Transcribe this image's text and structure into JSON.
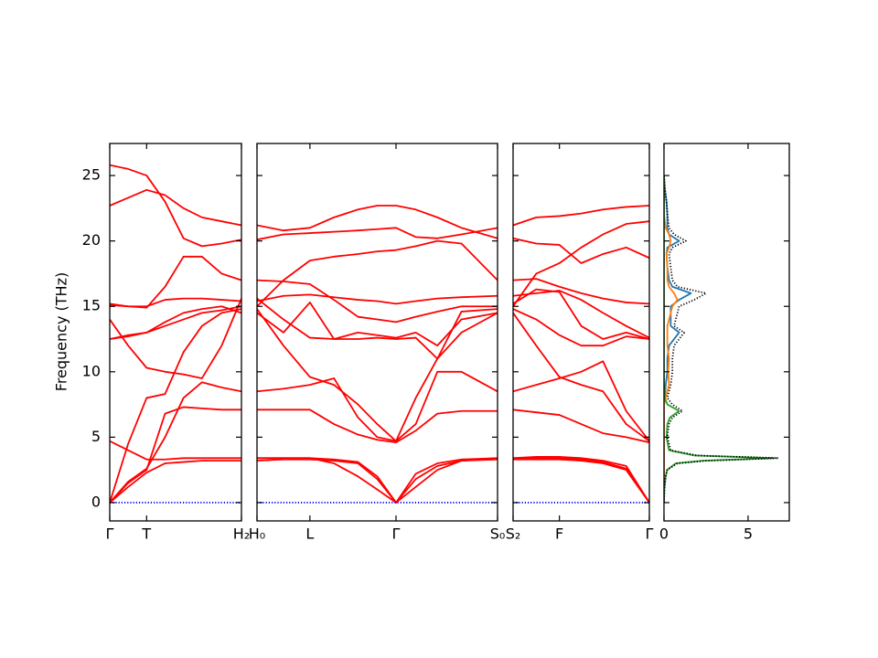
{
  "chart_data": [
    {
      "type": "line",
      "ylabel": "Frequency (THz)",
      "ylim": [
        -1.4,
        27.45
      ],
      "yticks": [
        0,
        5,
        10,
        15,
        20,
        25
      ],
      "xlim": [
        0,
        1
      ],
      "xticks": [
        {
          "value": 0,
          "label": "Γ"
        },
        {
          "value": 0.28,
          "label": "T"
        },
        {
          "value": 1,
          "label": "H₂"
        }
      ],
      "x": [
        0,
        0.14,
        0.28,
        0.42,
        0.56,
        0.7,
        0.85,
        1.0
      ],
      "series": [
        {
          "color": "#ff0000",
          "values": [
            0,
            1.2,
            2.3,
            3.0,
            3.1,
            3.2,
            3.2,
            3.2
          ]
        },
        {
          "color": "#ff0000",
          "values": [
            4.7,
            4.0,
            3.3,
            3.3,
            3.4,
            3.4,
            3.4,
            3.4
          ]
        },
        {
          "color": "#ff0000",
          "values": [
            0,
            1.5,
            2.5,
            6.8,
            7.3,
            7.2,
            7.1,
            7.1
          ]
        },
        {
          "color": "#ff0000",
          "values": [
            0,
            1.6,
            2.6,
            5.0,
            8.0,
            9.2,
            8.8,
            8.5
          ]
        },
        {
          "color": "#ff0000",
          "values": [
            0,
            4.5,
            8.0,
            8.3,
            11.5,
            13.5,
            14.5,
            14.8
          ]
        },
        {
          "color": "#ff0000",
          "values": [
            14.0,
            12.0,
            10.3,
            10.0,
            9.8,
            9.5,
            12.0,
            15.6
          ]
        },
        {
          "color": "#ff0000",
          "values": [
            12.5,
            12.7,
            13.0,
            13.8,
            14.5,
            14.8,
            15.0,
            14.5
          ]
        },
        {
          "color": "#ff0000",
          "values": [
            15.1,
            15.0,
            15.0,
            15.5,
            15.6,
            15.6,
            15.5,
            15.4
          ]
        },
        {
          "color": "#ff0000",
          "values": [
            15.2,
            15.0,
            14.9,
            16.5,
            18.8,
            18.8,
            17.5,
            17.0
          ]
        },
        {
          "color": "#ff0000",
          "values": [
            22.7,
            23.3,
            23.9,
            23.5,
            22.5,
            21.8,
            21.5,
            21.2
          ]
        },
        {
          "color": "#ff0000",
          "values": [
            25.8,
            25.5,
            25.0,
            23.0,
            20.2,
            19.6,
            19.8,
            20.1
          ]
        },
        {
          "color": "#ff0000",
          "values": [
            12.5,
            12.8,
            13.0,
            13.5,
            14.0,
            14.5,
            14.7,
            15.0
          ]
        },
        {
          "color": "#0000ff",
          "linestyle": "dotted",
          "values": [
            0,
            0,
            0,
            0,
            0,
            0,
            0,
            0
          ]
        }
      ]
    },
    {
      "type": "line",
      "xlim": [
        0,
        1
      ],
      "xticks": [
        {
          "value": 0,
          "label": "H₀"
        },
        {
          "value": 0.22,
          "label": "L"
        },
        {
          "value": 0.578,
          "label": "Γ"
        },
        {
          "value": 1,
          "label": "S₀"
        }
      ],
      "x": [
        0,
        0.11,
        0.22,
        0.32,
        0.42,
        0.5,
        0.578,
        0.66,
        0.75,
        0.85,
        1.0
      ],
      "series": [
        {
          "color": "#ff0000",
          "values": [
            3.2,
            3.3,
            3.3,
            3.2,
            3.0,
            1.8,
            0,
            1.8,
            2.8,
            3.2,
            3.3
          ]
        },
        {
          "color": "#ff0000",
          "values": [
            3.4,
            3.4,
            3.4,
            3.3,
            3.1,
            2.0,
            0,
            2.2,
            3.0,
            3.3,
            3.4
          ]
        },
        {
          "color": "#ff0000",
          "values": [
            3.4,
            3.4,
            3.4,
            3.0,
            2.0,
            1.0,
            0,
            1.2,
            2.5,
            3.2,
            3.4
          ]
        },
        {
          "color": "#ff0000",
          "values": [
            7.1,
            7.1,
            7.1,
            6.0,
            5.2,
            4.8,
            4.6,
            5.5,
            6.8,
            7.0,
            7.0
          ]
        },
        {
          "color": "#ff0000",
          "values": [
            8.5,
            8.7,
            9.0,
            9.5,
            6.5,
            5.0,
            4.7,
            6.0,
            10.0,
            10.0,
            8.5
          ]
        },
        {
          "color": "#ff0000",
          "values": [
            14.8,
            12.0,
            9.6,
            9.0,
            7.5,
            6.0,
            4.7,
            8.0,
            11.0,
            13.0,
            14.5
          ]
        },
        {
          "color": "#ff0000",
          "values": [
            15.6,
            14.0,
            12.6,
            12.5,
            12.5,
            12.6,
            12.5,
            12.6,
            11.0,
            14.6,
            14.8
          ]
        },
        {
          "color": "#ff0000",
          "values": [
            14.5,
            13.0,
            15.3,
            12.5,
            13.0,
            12.8,
            12.6,
            13.0,
            12.0,
            14.0,
            14.5
          ]
        },
        {
          "color": "#ff0000",
          "values": [
            15.4,
            15.8,
            15.9,
            15.7,
            15.5,
            15.4,
            15.2,
            15.4,
            15.6,
            15.7,
            15.8
          ]
        },
        {
          "color": "#ff0000",
          "values": [
            17.0,
            16.9,
            16.7,
            15.5,
            14.2,
            14.0,
            13.8,
            14.2,
            14.6,
            15.0,
            15.0
          ]
        },
        {
          "color": "#ff0000",
          "values": [
            15.0,
            17.0,
            18.5,
            18.8,
            19.0,
            19.2,
            19.3,
            19.6,
            20.0,
            19.8,
            17.0
          ]
        },
        {
          "color": "#ff0000",
          "values": [
            20.1,
            20.5,
            20.6,
            20.7,
            20.8,
            20.9,
            21.0,
            20.3,
            20.2,
            20.5,
            21.0
          ]
        },
        {
          "color": "#ff0000",
          "values": [
            21.2,
            20.8,
            21.0,
            21.8,
            22.4,
            22.7,
            22.7,
            22.4,
            21.8,
            21.0,
            20.2
          ]
        },
        {
          "color": "#0000ff",
          "linestyle": "dotted",
          "values": [
            0,
            0,
            0,
            0,
            0,
            0,
            0,
            0,
            0,
            0,
            0
          ]
        }
      ]
    },
    {
      "type": "line",
      "xlim": [
        0,
        1
      ],
      "xticks": [
        {
          "value": 0,
          "label": "S₂"
        },
        {
          "value": 0.34,
          "label": "F"
        },
        {
          "value": 1,
          "label": "Γ"
        }
      ],
      "x": [
        0,
        0.17,
        0.34,
        0.5,
        0.66,
        0.83,
        1.0
      ],
      "series": [
        {
          "color": "#ff0000",
          "values": [
            3.3,
            3.3,
            3.3,
            3.2,
            3.0,
            2.5,
            0
          ]
        },
        {
          "color": "#ff0000",
          "values": [
            3.4,
            3.4,
            3.4,
            3.3,
            3.1,
            2.6,
            0
          ]
        },
        {
          "color": "#ff0000",
          "values": [
            3.4,
            3.5,
            3.5,
            3.4,
            3.2,
            2.8,
            0
          ]
        },
        {
          "color": "#ff0000",
          "values": [
            7.1,
            6.9,
            6.7,
            6.0,
            5.3,
            5.0,
            4.6
          ]
        },
        {
          "color": "#ff0000",
          "values": [
            8.5,
            9.0,
            9.5,
            10.0,
            10.8,
            7.0,
            4.7
          ]
        },
        {
          "color": "#ff0000",
          "values": [
            14.5,
            12.0,
            9.6,
            9.0,
            8.5,
            6.0,
            4.7
          ]
        },
        {
          "color": "#ff0000",
          "values": [
            14.8,
            14.0,
            12.8,
            12.0,
            12.0,
            12.7,
            12.5
          ]
        },
        {
          "color": "#ff0000",
          "values": [
            15.8,
            16.0,
            16.2,
            15.5,
            14.5,
            13.5,
            12.6
          ]
        },
        {
          "color": "#ff0000",
          "values": [
            17.0,
            17.1,
            16.5,
            16.0,
            15.6,
            15.3,
            15.2
          ]
        },
        {
          "color": "#ff0000",
          "values": [
            15.2,
            16.3,
            16.1,
            13.5,
            12.5,
            13.0,
            12.5
          ]
        },
        {
          "color": "#ff0000",
          "values": [
            20.2,
            19.8,
            19.7,
            18.3,
            19.0,
            19.5,
            18.7
          ]
        },
        {
          "color": "#ff0000",
          "values": [
            21.2,
            21.8,
            21.9,
            22.1,
            22.4,
            22.6,
            22.7
          ]
        },
        {
          "color": "#ff0000",
          "values": [
            15.0,
            17.5,
            18.3,
            19.5,
            20.5,
            21.3,
            21.5
          ]
        },
        {
          "color": "#0000ff",
          "linestyle": "dotted",
          "values": [
            0,
            0,
            0,
            0,
            0,
            0,
            0
          ]
        }
      ]
    },
    {
      "type": "line",
      "orientation": "horizontal",
      "xlim": [
        0,
        7.45
      ],
      "xticks": [
        0,
        5
      ],
      "y": [
        0,
        1,
        2,
        2.5,
        3,
        3.2,
        3.4,
        3.6,
        4,
        5,
        6,
        6.5,
        7,
        7.5,
        8,
        9,
        10,
        11,
        12,
        12.5,
        13,
        13.5,
        14,
        15,
        15.5,
        16,
        16.5,
        17,
        18,
        19,
        19.5,
        20,
        20.5,
        21,
        22,
        23,
        24,
        25
      ],
      "series": [
        {
          "color": "#1f77b4",
          "values": [
            0,
            0,
            0,
            0,
            0,
            0,
            0,
            0,
            0,
            0,
            0,
            0,
            0,
            0,
            0.05,
            0.1,
            0.2,
            0.2,
            0.3,
            0.6,
            0.9,
            0.4,
            0.4,
            0.4,
            0.9,
            1.6,
            0.5,
            0.3,
            0.2,
            0.15,
            0.2,
            0.9,
            0.3,
            0.2,
            0.2,
            0.15,
            0.05,
            0
          ]
        },
        {
          "color": "#ff7f0e",
          "values": [
            0,
            0,
            0,
            0,
            0,
            0,
            0,
            0,
            0,
            0,
            0,
            0,
            0,
            0,
            0.1,
            0.3,
            0.25,
            0.3,
            0.2,
            0.2,
            0.2,
            0.2,
            0.3,
            0.5,
            0.8,
            0.6,
            0.3,
            0.2,
            0.2,
            0.15,
            0.3,
            0.4,
            0.3,
            0.1,
            0,
            0,
            0,
            0
          ]
        },
        {
          "color": "#2ca02c",
          "values": [
            0,
            0.02,
            0.1,
            0.18,
            0.7,
            2.3,
            6.5,
            1.8,
            0.3,
            0.15,
            0.2,
            0.35,
            0.9,
            0.2,
            0.05,
            0,
            0,
            0,
            0,
            0,
            0,
            0,
            0,
            0,
            0,
            0,
            0,
            0,
            0,
            0,
            0,
            0,
            0,
            0,
            0,
            0,
            0,
            0
          ]
        },
        {
          "color": "#000000",
          "linestyle": "dotted",
          "values": [
            0,
            0.02,
            0.1,
            0.2,
            0.8,
            2.5,
            6.8,
            2.0,
            0.4,
            0.2,
            0.3,
            0.5,
            1.1,
            0.5,
            0.2,
            0.4,
            0.5,
            0.5,
            0.6,
            0.9,
            1.2,
            0.6,
            0.7,
            0.9,
            1.8,
            2.5,
            0.8,
            0.5,
            0.4,
            0.3,
            0.5,
            1.3,
            0.6,
            0.3,
            0.2,
            0.15,
            0.05,
            0
          ]
        }
      ]
    }
  ]
}
